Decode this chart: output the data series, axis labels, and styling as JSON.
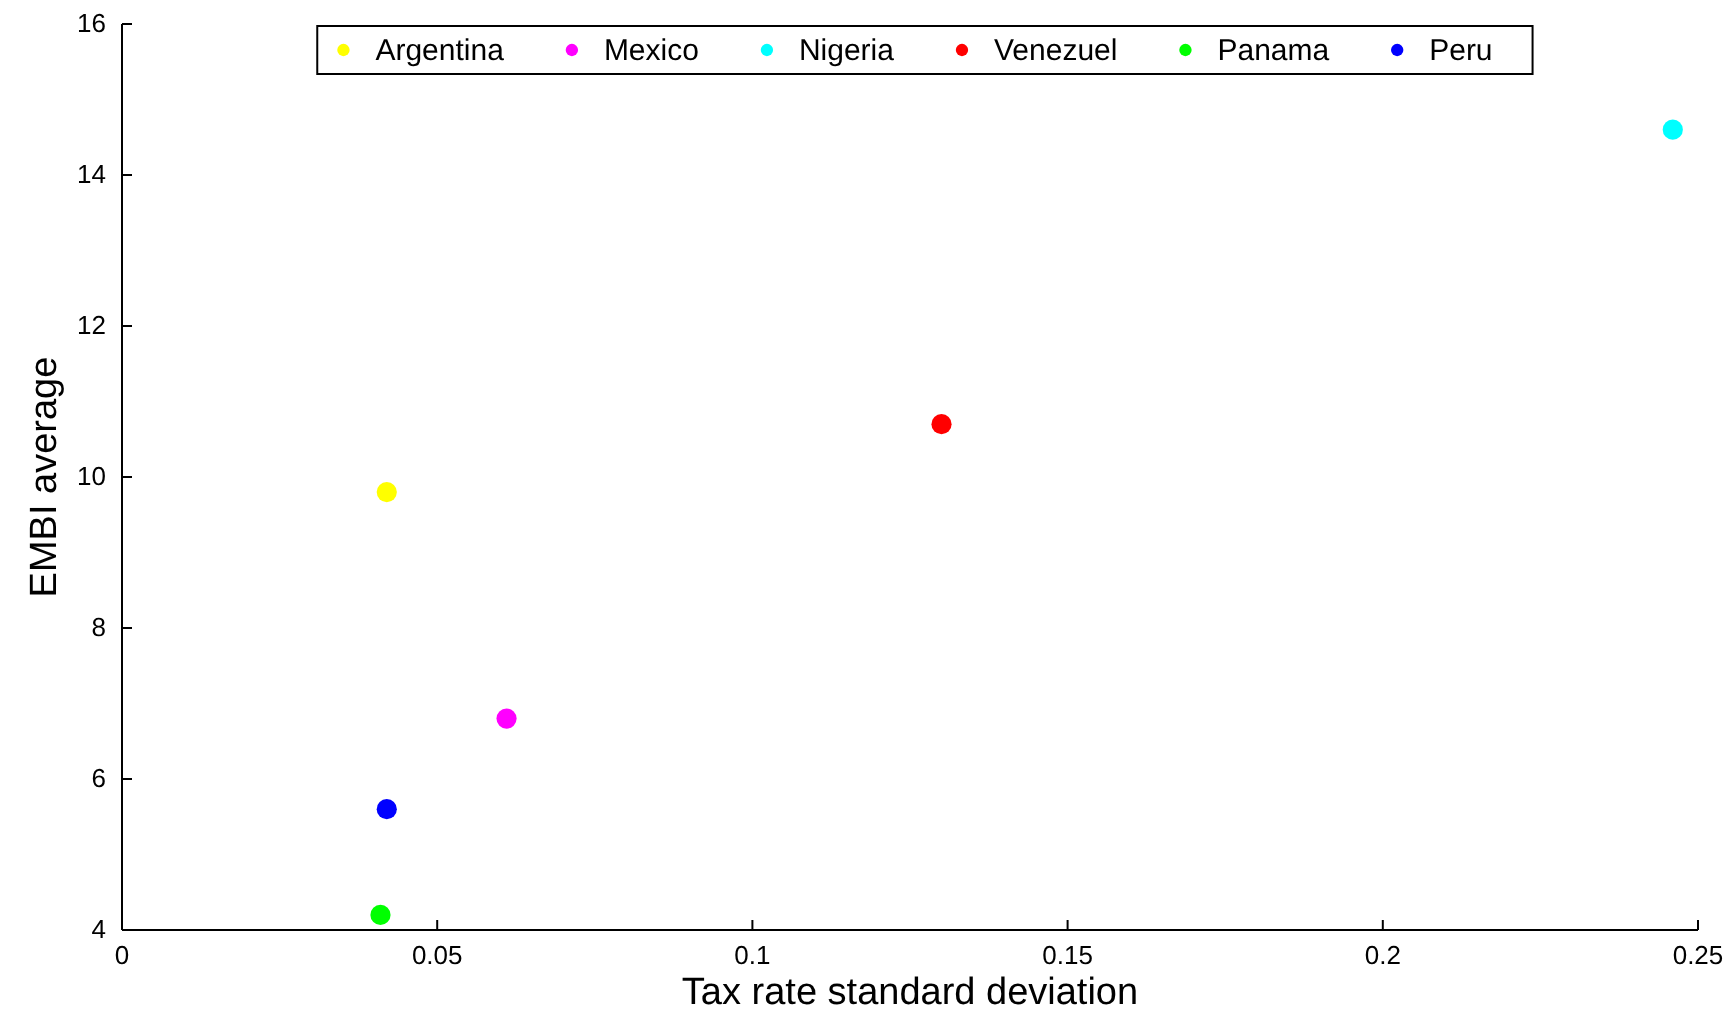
{
  "chart_data": {
    "type": "scatter",
    "xlabel": "Tax rate standard deviation",
    "ylabel": "EMBI average",
    "xlim": [
      0,
      0.25
    ],
    "xticks": [
      0,
      0.05,
      0.1,
      0.15,
      0.2,
      0.25
    ],
    "ylim": [
      4,
      16
    ],
    "yticks": [
      4,
      6,
      8,
      10,
      12,
      14,
      16
    ],
    "legend": "top",
    "marker": "circle",
    "grid": false,
    "series": [
      {
        "name": "Argentina",
        "color": "#ffff00",
        "x": [
          0.042
        ],
        "values": [
          9.8
        ]
      },
      {
        "name": "Mexico",
        "color": "#ff00ff",
        "x": [
          0.061
        ],
        "values": [
          6.8
        ]
      },
      {
        "name": "Nigeria",
        "color": "#00ffff",
        "x": [
          0.246
        ],
        "values": [
          14.6
        ]
      },
      {
        "name": "Venezuel",
        "color": "#ff0000",
        "x": [
          0.13
        ],
        "values": [
          10.7
        ]
      },
      {
        "name": "Panama",
        "color": "#00ff00",
        "x": [
          0.041
        ],
        "values": [
          4.2
        ]
      },
      {
        "name": "Peru",
        "color": "#0000ff",
        "x": [
          0.042
        ],
        "values": [
          5.6
        ]
      }
    ]
  }
}
